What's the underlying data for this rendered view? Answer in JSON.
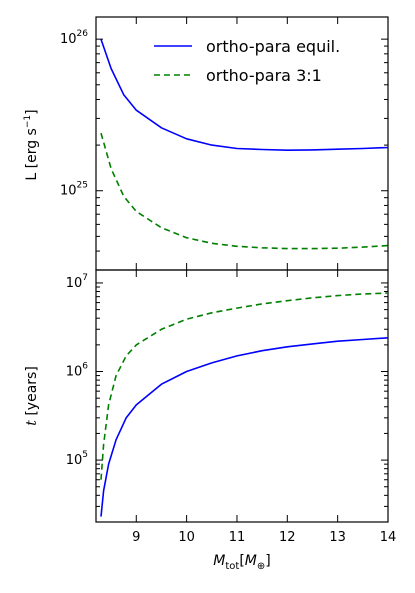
{
  "chart_data": [
    {
      "type": "line",
      "panel": "top",
      "ylabel": "L [erg s",
      "ylabel_sup": "−1",
      "ylabel_end": "]",
      "yscale": "log",
      "ylim": [
        3000000000000000000000000,
        140000000000000000000000000
      ],
      "xlim": [
        8.2,
        14
      ],
      "yticks": [
        {
          "value": 10000000000000000000000000,
          "base": "10",
          "exp": "25"
        },
        {
          "value": 100000000000000000000000000,
          "base": "10",
          "exp": "26"
        }
      ],
      "legend": {
        "placement": "top-right"
      },
      "series": [
        {
          "name": "ortho-para equil.",
          "color": "#0000ff",
          "style": "solid",
          "x": [
            8.3,
            8.5,
            8.75,
            9.0,
            9.5,
            10.0,
            10.5,
            11.0,
            11.5,
            12.0,
            12.5,
            13.0,
            13.5,
            14.0
          ],
          "y": [
            100000000000000000000000000,
            64000000000000000000000000,
            43000000000000000000000000,
            34000000000000000000000000,
            26000000000000000000000000,
            22000000000000000000000000,
            20000000000000000000000000,
            19000000000000000000000000,
            18700000000000000000000000,
            18500000000000000000000000,
            18600000000000000000000000,
            18800000000000000000000000,
            19000000000000000000000000,
            19300000000000000000000000
          ]
        },
        {
          "name": "ortho-para 3:1",
          "color": "#008000",
          "style": "dashed",
          "x": [
            8.3,
            8.5,
            8.75,
            9.0,
            9.5,
            10.0,
            10.5,
            11.0,
            11.5,
            12.0,
            12.5,
            13.0,
            13.5,
            14.0
          ],
          "y": [
            24000000000000000000000000,
            14000000000000000000000000,
            9200000000000000000000000,
            7300000000000000000000000,
            5700000000000000000000000,
            4900000000000000000000000,
            4500000000000000000000000,
            4300000000000000000000000,
            4200000000000000000000000,
            4150000000000000000000000,
            4150000000000000000000000,
            4180000000000000000000000,
            4250000000000000000000000,
            4350000000000000000000000
          ]
        }
      ]
    },
    {
      "type": "line",
      "panel": "bottom",
      "ylabel": "[years]",
      "ylabel_var": "t",
      "yscale": "log",
      "ylim": [
        20000,
        14000000
      ],
      "xlim": [
        8.2,
        14
      ],
      "xlabel_var": "M",
      "xlabel_sub": "tot",
      "xlabel_unit_open": "[",
      "xlabel_unit_var": "M",
      "xlabel_unit_sub": "⊕",
      "xlabel_unit_close": "]",
      "xticks": [
        9,
        10,
        11,
        12,
        13,
        14
      ],
      "xtick_labels": [
        "9",
        "10",
        "11",
        "12",
        "13",
        "14"
      ],
      "yticks": [
        {
          "value": 100000,
          "base": "10",
          "exp": "5"
        },
        {
          "value": 1000000,
          "base": "10",
          "exp": "6"
        },
        {
          "value": 10000000,
          "base": "10",
          "exp": "7"
        }
      ],
      "series": [
        {
          "name": "ortho-para equil.",
          "color": "#0000ff",
          "style": "solid",
          "x": [
            8.3,
            8.35,
            8.45,
            8.6,
            8.8,
            9.0,
            9.5,
            10.0,
            10.5,
            11.0,
            11.5,
            12.0,
            12.5,
            13.0,
            13.5,
            14.0
          ],
          "y": [
            23000,
            45000,
            90000,
            170000,
            300000,
            420000,
            720000,
            1000000,
            1250000,
            1500000,
            1720000,
            1900000,
            2050000,
            2200000,
            2300000,
            2400000
          ]
        },
        {
          "name": "ortho-para 3:1",
          "color": "#008000",
          "style": "dashed",
          "x": [
            8.3,
            8.35,
            8.45,
            8.6,
            8.8,
            9.0,
            9.5,
            10.0,
            10.5,
            11.0,
            11.5,
            12.0,
            12.5,
            13.0,
            13.5,
            14.0
          ],
          "y": [
            60000,
            150000,
            420000,
            900000,
            1500000,
            2000000,
            3000000,
            3900000,
            4600000,
            5200000,
            5800000,
            6300000,
            6800000,
            7200000,
            7500000,
            7700000
          ]
        }
      ]
    }
  ]
}
